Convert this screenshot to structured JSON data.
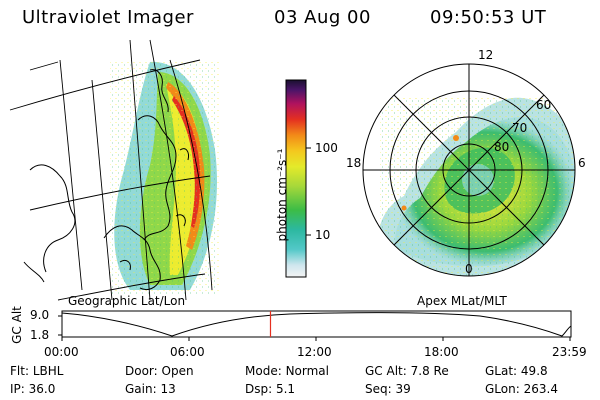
{
  "header": {
    "title": "Ultraviolet Imager",
    "date": "03 Aug 00",
    "time": "09:50:53 UT"
  },
  "left_panel": {
    "caption": "Geographic Lat/Lon"
  },
  "colorbar": {
    "label": "photon cm⁻²s⁻¹",
    "tick_100": "100",
    "tick_10": "10"
  },
  "polar_plot": {
    "caption": "Apex MLat/MLT",
    "mlt_labels": {
      "top": "12",
      "left": "18",
      "right": "6",
      "bottom": "0"
    },
    "lat_labels": [
      "60",
      "70",
      "80"
    ]
  },
  "altitude_strip": {
    "axis_label": "GC Alt",
    "ymax_label": "9.0",
    "ymin_label": "1.8",
    "time_ticks": [
      "00:00",
      "06:00",
      "12:00",
      "18:00",
      "23:59"
    ],
    "current_time_hours": 9.85
  },
  "info": {
    "row1": [
      {
        "label": "Flt:",
        "value": "LBHL"
      },
      {
        "label": "Door:",
        "value": "Open"
      },
      {
        "label": "Mode:",
        "value": "Normal"
      },
      {
        "label": "GC Alt:",
        "value": "7.8 Re"
      },
      {
        "label": "GLat:",
        "value": "49.8"
      }
    ],
    "row2": [
      {
        "label": "IP:",
        "value": "36.0"
      },
      {
        "label": "Gain:",
        "value": "13"
      },
      {
        "label": "Dsp:",
        "value": "5.1"
      },
      {
        "label": "Seq:",
        "value": "39"
      },
      {
        "label": "GLon:",
        "value": "263.4"
      }
    ]
  },
  "colors": {
    "cursor": "#e53020",
    "colorbar_top": "#1a1030",
    "colorbar_bottom": "#f4f4f4"
  }
}
